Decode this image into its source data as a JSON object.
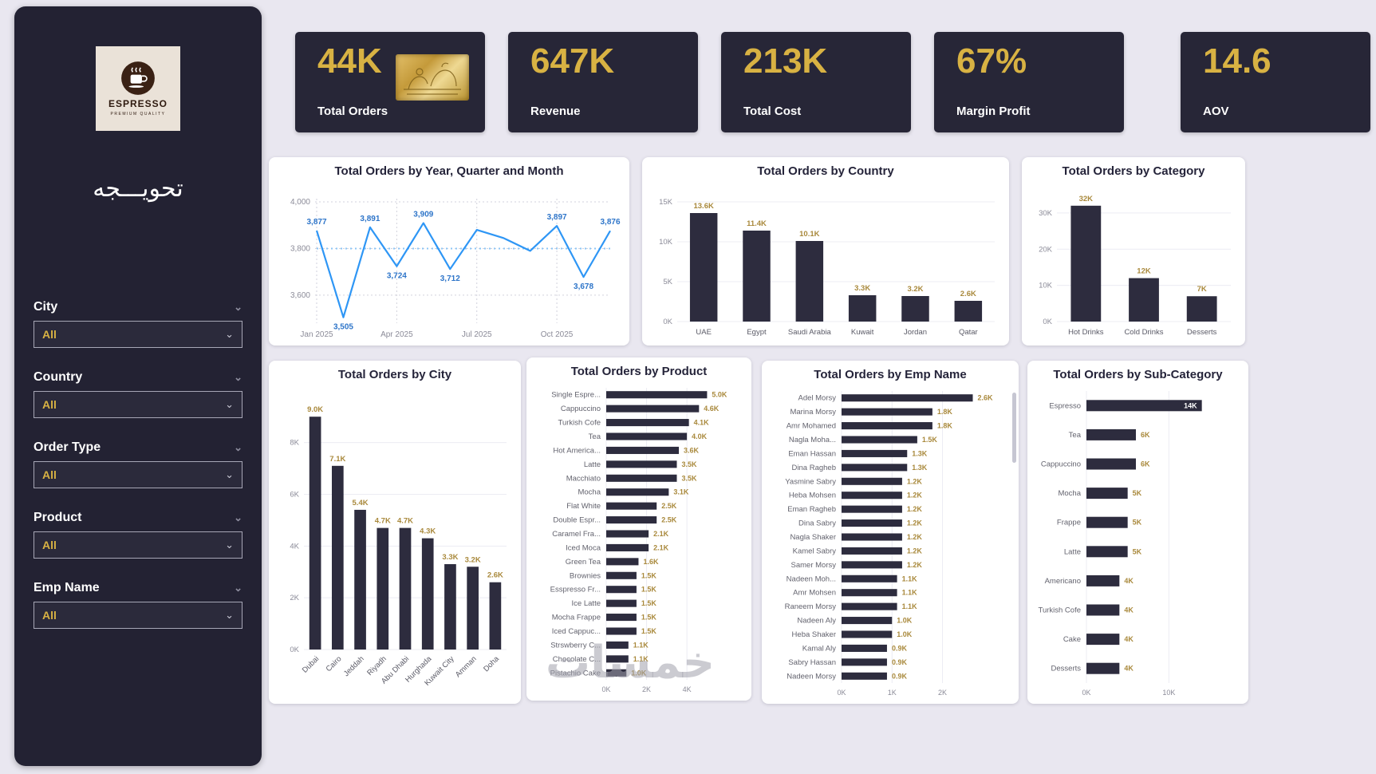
{
  "watermark": "خمسات",
  "colors": {
    "background": "#E9E7F0",
    "sidebar": "#232233",
    "card_dark": "#272637",
    "gold": "#D8B243",
    "bar_fill": "#2D2C3E",
    "value_label": "#A9893C",
    "line_blue": "#2E96F5"
  },
  "sidebar": {
    "logo": {
      "brand": "ESPRESSO",
      "tagline": "PREMIUM QUALITY"
    },
    "title": "تحويـــجه",
    "filters": [
      {
        "label": "City",
        "value": "All"
      },
      {
        "label": "Country",
        "value": "All"
      },
      {
        "label": "Order Type",
        "value": "All"
      },
      {
        "label": "Product",
        "value": "All"
      },
      {
        "label": "Emp Name",
        "value": "All"
      }
    ]
  },
  "kpis": [
    {
      "value": "44K",
      "label": "Total Orders"
    },
    {
      "value": "647K",
      "label": "Revenue"
    },
    {
      "value": "213K",
      "label": "Total Cost"
    },
    {
      "value": "67%",
      "label": "Margin Profit"
    },
    {
      "value": "14.6",
      "label": "AOV"
    }
  ],
  "chart_data": [
    {
      "type": "line",
      "title": "Total Orders by Year, Quarter and Month",
      "x": [
        "Jan 2025",
        "Feb 2025",
        "Mar 2025",
        "Apr 2025",
        "May 2025",
        "Jun 2025",
        "Jul 2025",
        "Aug 2025",
        "Sep 2025",
        "Oct 2025",
        "Nov 2025",
        "Dec 2025"
      ],
      "values": [
        3877,
        3505,
        3891,
        3724,
        3909,
        3712,
        3880,
        3845,
        3790,
        3897,
        3678,
        3876
      ],
      "point_labels": [
        "3,877",
        "3,505",
        "3,891",
        "3,724",
        "3,909",
        "3,712",
        "",
        "",
        "",
        "3,897",
        "3,678",
        "3,876"
      ],
      "x_ticks": [
        0,
        3,
        6,
        9
      ],
      "y_ticks": [
        3600,
        3800,
        4000
      ],
      "y_tick_labels": [
        "3,600",
        "3,800",
        "4,000"
      ],
      "ylim": [
        3480,
        4000
      ],
      "average_line": 3800,
      "line_color": "#2E96F5",
      "label_color": "#2E75C9",
      "legend_position": "none",
      "grid": true
    },
    {
      "type": "bar",
      "title": "Total Orders by Country",
      "categories": [
        "UAE",
        "Egypt",
        "Saudi Arabia",
        "Kuwait",
        "Jordan",
        "Qatar"
      ],
      "values": [
        13600,
        11400,
        10100,
        3300,
        3200,
        2600
      ],
      "value_labels": [
        "13.6K",
        "11.4K",
        "10.1K",
        "3.3K",
        "3.2K",
        "2.6K"
      ],
      "y_ticks": [
        0,
        5000,
        10000,
        15000
      ],
      "y_tick_labels": [
        "0K",
        "5K",
        "10K",
        "15K"
      ],
      "ylim": [
        0,
        15200
      ],
      "rotate_labels": false
    },
    {
      "type": "bar",
      "title": "Total Orders by Category",
      "categories": [
        "Hot Drinks",
        "Cold Drinks",
        "Desserts"
      ],
      "values": [
        32000,
        12000,
        7000
      ],
      "value_labels": [
        "32K",
        "12K",
        "7K"
      ],
      "y_ticks": [
        0,
        10000,
        20000,
        30000
      ],
      "y_tick_labels": [
        "0K",
        "10K",
        "20K",
        "30K"
      ],
      "ylim": [
        0,
        33500
      ],
      "rotate_labels": false
    },
    {
      "type": "bar",
      "title": "Total Orders by City",
      "categories": [
        "Dubai",
        "Cairo",
        "Jeddah",
        "Riyadh",
        "Abu Dhabi",
        "Hurghada",
        "Kuwait City",
        "Amman",
        "Doha"
      ],
      "values": [
        9000,
        7100,
        5400,
        4700,
        4700,
        4300,
        3300,
        3200,
        2600
      ],
      "value_labels": [
        "9.0K",
        "7.1K",
        "5.4K",
        "4.7K",
        "4.7K",
        "4.3K",
        "3.3K",
        "3.2K",
        "2.6K"
      ],
      "y_ticks": [
        0,
        2000,
        4000,
        6000,
        8000
      ],
      "y_tick_labels": [
        "0K",
        "2K",
        "4K",
        "6K",
        "8K"
      ],
      "ylim": [
        0,
        9500
      ],
      "rotate_labels": true
    },
    {
      "type": "hbar",
      "title": "Total Orders by Product",
      "items": [
        {
          "label": "Single Espre...",
          "value": 5000,
          "value_label": "5.0K"
        },
        {
          "label": "Cappuccino",
          "value": 4600,
          "value_label": "4.6K"
        },
        {
          "label": "Turkish Cofe",
          "value": 4100,
          "value_label": "4.1K"
        },
        {
          "label": "Tea",
          "value": 4000,
          "value_label": "4.0K"
        },
        {
          "label": "Hot America...",
          "value": 3600,
          "value_label": "3.6K"
        },
        {
          "label": "Latte",
          "value": 3500,
          "value_label": "3.5K"
        },
        {
          "label": "Macchiato",
          "value": 3500,
          "value_label": "3.5K"
        },
        {
          "label": "Mocha",
          "value": 3100,
          "value_label": "3.1K"
        },
        {
          "label": "Flat White",
          "value": 2500,
          "value_label": "2.5K"
        },
        {
          "label": "Double Espr...",
          "value": 2500,
          "value_label": "2.5K"
        },
        {
          "label": "Caramel Fra...",
          "value": 2100,
          "value_label": "2.1K"
        },
        {
          "label": "Iced Moca",
          "value": 2100,
          "value_label": "2.1K"
        },
        {
          "label": "Green Tea",
          "value": 1600,
          "value_label": "1.6K"
        },
        {
          "label": "Brownies",
          "value": 1500,
          "value_label": "1.5K"
        },
        {
          "label": "Esspresso Fr...",
          "value": 1500,
          "value_label": "1.5K"
        },
        {
          "label": "Ice Latte",
          "value": 1500,
          "value_label": "1.5K"
        },
        {
          "label": "Mocha Frappe",
          "value": 1500,
          "value_label": "1.5K"
        },
        {
          "label": "Iced Cappuc...",
          "value": 1500,
          "value_label": "1.5K"
        },
        {
          "label": "Strswberry C...",
          "value": 1100,
          "value_label": "1.1K"
        },
        {
          "label": "Chocolate C...",
          "value": 1100,
          "value_label": "1.1K"
        },
        {
          "label": "Pistachio Cake",
          "value": 1000,
          "value_label": "1.0K"
        }
      ],
      "x_ticks": [
        0,
        2000,
        4000
      ],
      "x_tick_labels": [
        "0K",
        "2K",
        "4K"
      ],
      "xlim": [
        0,
        5300
      ],
      "label_width": 92,
      "first_label_inside": false
    },
    {
      "type": "hbar",
      "title": "Total Orders by Emp Name",
      "items": [
        {
          "label": "Adel Morsy",
          "value": 2600,
          "value_label": "2.6K"
        },
        {
          "label": "Marina Morsy",
          "value": 1800,
          "value_label": "1.8K"
        },
        {
          "label": "Amr Mohamed",
          "value": 1800,
          "value_label": "1.8K"
        },
        {
          "label": "Nagla Moha...",
          "value": 1500,
          "value_label": "1.5K"
        },
        {
          "label": "Eman Hassan",
          "value": 1300,
          "value_label": "1.3K"
        },
        {
          "label": "Dina Ragheb",
          "value": 1300,
          "value_label": "1.3K"
        },
        {
          "label": "Yasmine Sabry",
          "value": 1200,
          "value_label": "1.2K"
        },
        {
          "label": "Heba Mohsen",
          "value": 1200,
          "value_label": "1.2K"
        },
        {
          "label": "Eman Ragheb",
          "value": 1200,
          "value_label": "1.2K"
        },
        {
          "label": "Dina Sabry",
          "value": 1200,
          "value_label": "1.2K"
        },
        {
          "label": "Nagla Shaker",
          "value": 1200,
          "value_label": "1.2K"
        },
        {
          "label": "Kamel Sabry",
          "value": 1200,
          "value_label": "1.2K"
        },
        {
          "label": "Samer Morsy",
          "value": 1200,
          "value_label": "1.2K"
        },
        {
          "label": "Nadeen Moh...",
          "value": 1100,
          "value_label": "1.1K"
        },
        {
          "label": "Amr Mohsen",
          "value": 1100,
          "value_label": "1.1K"
        },
        {
          "label": "Raneem Morsy",
          "value": 1100,
          "value_label": "1.1K"
        },
        {
          "label": "Nadeen Aly",
          "value": 1000,
          "value_label": "1.0K"
        },
        {
          "label": "Heba Shaker",
          "value": 1000,
          "value_label": "1.0K"
        },
        {
          "label": "Kamal Aly",
          "value": 900,
          "value_label": "0.9K"
        },
        {
          "label": "Sabry Hassan",
          "value": 900,
          "value_label": "0.9K"
        },
        {
          "label": "Nadeen Morsy",
          "value": 900,
          "value_label": "0.9K"
        }
      ],
      "x_ticks": [
        0,
        1000,
        2000
      ],
      "x_tick_labels": [
        "0K",
        "1K",
        "2K"
      ],
      "xlim": [
        0,
        2750
      ],
      "label_width": 92,
      "first_label_inside": false,
      "has_scrollbar": true
    },
    {
      "type": "hbar",
      "title": "Total Orders by Sub-Category",
      "items": [
        {
          "label": "Espresso",
          "value": 14000,
          "value_label": "14K"
        },
        {
          "label": "Tea",
          "value": 6000,
          "value_label": "6K"
        },
        {
          "label": "Cappuccino",
          "value": 6000,
          "value_label": "6K"
        },
        {
          "label": "Mocha",
          "value": 5000,
          "value_label": "5K"
        },
        {
          "label": "Frappe",
          "value": 5000,
          "value_label": "5K"
        },
        {
          "label": "Latte",
          "value": 5000,
          "value_label": "5K"
        },
        {
          "label": "Americano",
          "value": 4000,
          "value_label": "4K"
        },
        {
          "label": "Turkish Cofe",
          "value": 4000,
          "value_label": "4K"
        },
        {
          "label": "Cake",
          "value": 4000,
          "value_label": "4K"
        },
        {
          "label": "Desserts",
          "value": 4000,
          "value_label": "4K"
        }
      ],
      "x_ticks": [
        0,
        10000
      ],
      "x_tick_labels": [
        "0K",
        "10K"
      ],
      "xlim": [
        0,
        15000
      ],
      "label_width": 66,
      "first_label_inside": true
    }
  ]
}
